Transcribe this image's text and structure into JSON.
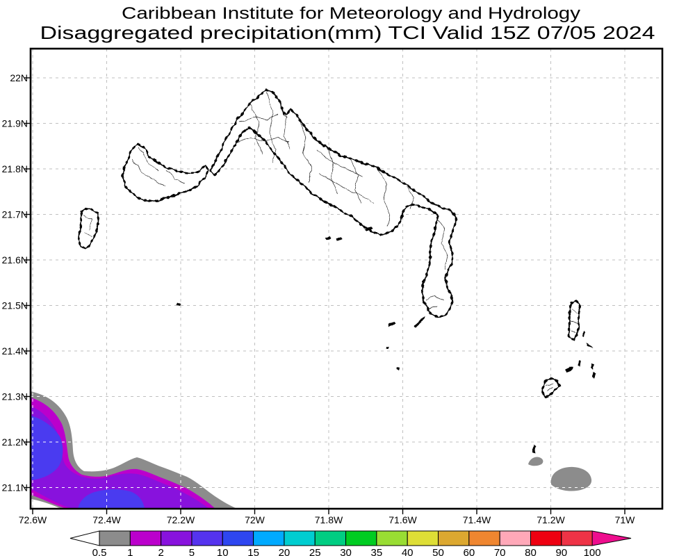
{
  "title": {
    "line1": "Caribbean Institute for Meteorology and Hydrology",
    "line2": "Disaggregated precipitation(mm) TCI Valid 15Z 07/05 2024"
  },
  "map": {
    "x_axis_labels": [
      "72.6W",
      "72.4W",
      "72.2W",
      "72W",
      "71.8W",
      "71.6W",
      "71.4W",
      "71.2W",
      "71W"
    ],
    "y_axis_labels": [
      "22N",
      "21.9N",
      "21.8N",
      "21.7N",
      "21.6N",
      "21.5N",
      "21.4N",
      "21.3N",
      "21.2N",
      "21.1N"
    ]
  },
  "colorbar": {
    "labels": [
      "0.5",
      "1",
      "2",
      "5",
      "10",
      "15",
      "20",
      "25",
      "30",
      "35",
      "40",
      "50",
      "60",
      "70",
      "80",
      "90",
      "100"
    ],
    "segment_colors": [
      "#8c8c8c",
      "#bb00cc",
      "#8812dd",
      "#5533ee",
      "#2e46f0",
      "#00aaff",
      "#00cdd0",
      "#00cd82",
      "#00cc22",
      "#99dd33",
      "#dede36",
      "#dca830",
      "#ef8630",
      "#ffa8b8",
      "#ee0011",
      "#ee3346"
    ],
    "below_min_color": "#ffffff",
    "above_max_color": "#ee0e8e"
  },
  "precipitation": {
    "unit": "mm",
    "shaded_levels_mm": [
      0.5,
      1,
      2,
      5
    ],
    "shaded_colors": [
      "#8c8c8c",
      "#bb00cc",
      "#8812dd",
      "#4a3bf0"
    ]
  }
}
